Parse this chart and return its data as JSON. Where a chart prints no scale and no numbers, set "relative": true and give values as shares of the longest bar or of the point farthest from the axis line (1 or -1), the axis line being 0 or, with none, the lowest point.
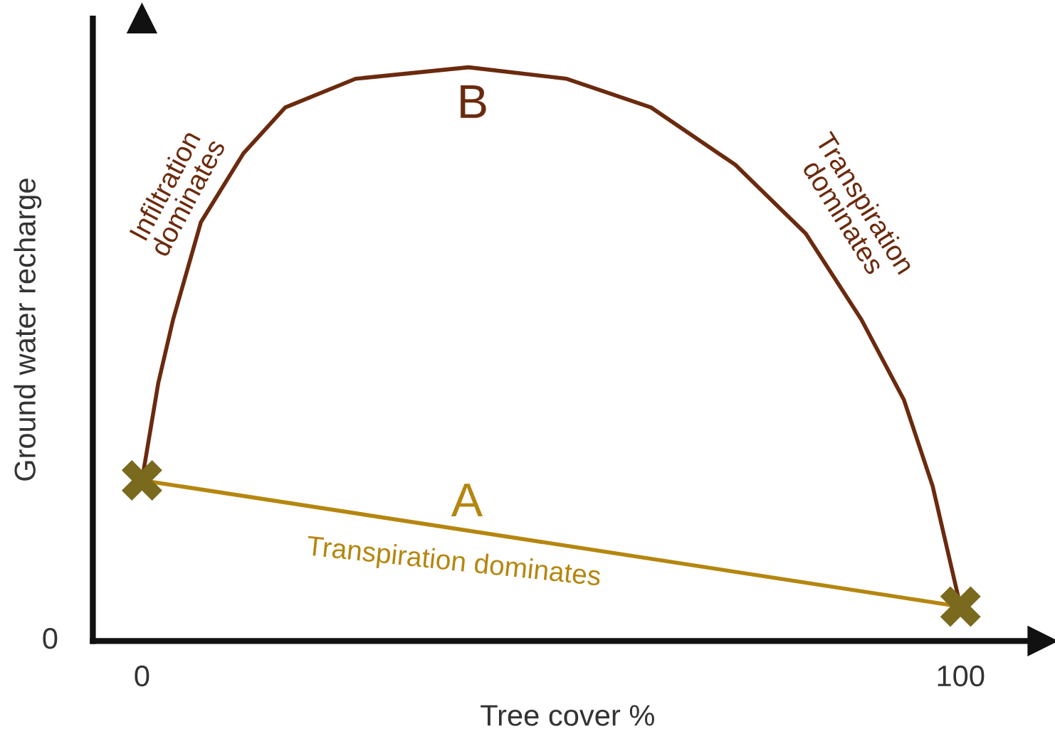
{
  "chart_data": {
    "type": "line",
    "relative": true,
    "xlabel": "Tree cover %",
    "ylabel": "Ground water recharge",
    "xlim": [
      -6,
      110
    ],
    "xticks": [
      0,
      100
    ],
    "grid": false,
    "legend": false,
    "series": [
      {
        "color": "#6b2a0e",
        "x": [
          0,
          2,
          3.8,
          7.2,
          12.4,
          17.5,
          26.1,
          39.9,
          51.9,
          62.2,
          72.5,
          81.1,
          87.9,
          93.1,
          96.6,
          100
        ],
        "values": [
          0.28,
          0.45,
          0.56,
          0.73,
          0.85,
          0.93,
          0.98,
          1,
          0.98,
          0.93,
          0.83,
          0.71,
          0.56,
          0.42,
          0.27,
          0.06
        ]
      },
      {
        "type": "line",
        "color": "#b5860f",
        "x": [
          0,
          100
        ],
        "values": [
          0.28,
          0.06
        ]
      },
      {
        "type": "scatter",
        "color": "#7a6a1e",
        "marker": "cross",
        "x": [
          0,
          100
        ],
        "values": [
          0.28,
          0.06
        ]
      }
    ],
    "annotations": [
      "B",
      "A",
      "Infiltration\ndominates",
      "Transpiration\ndominates",
      "Transpiration dominates",
      "0"
    ]
  }
}
